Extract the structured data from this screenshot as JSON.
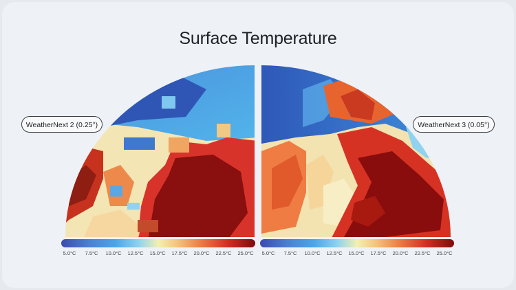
{
  "title": "Surface Temperature",
  "left_panel": {
    "label": "WeatherNext 2 (0.25°)"
  },
  "right_panel": {
    "label": "WeatherNext 3 (0.05°)"
  },
  "colorbar": {
    "min": 5.0,
    "max": 25.0,
    "ticks": [
      "5.0°C",
      "7.5°C",
      "10.0°C",
      "12.5°C",
      "15.0°C",
      "17.5°C",
      "20.0°C",
      "22.5°C",
      "25.0°C"
    ],
    "colors": [
      "#3b4bb0",
      "#4a7fd3",
      "#4aa6ea",
      "#8fd3f0",
      "#f3f0b0",
      "#f6c27a",
      "#ee7b42",
      "#cf2e21",
      "#7e0b0b"
    ]
  }
}
